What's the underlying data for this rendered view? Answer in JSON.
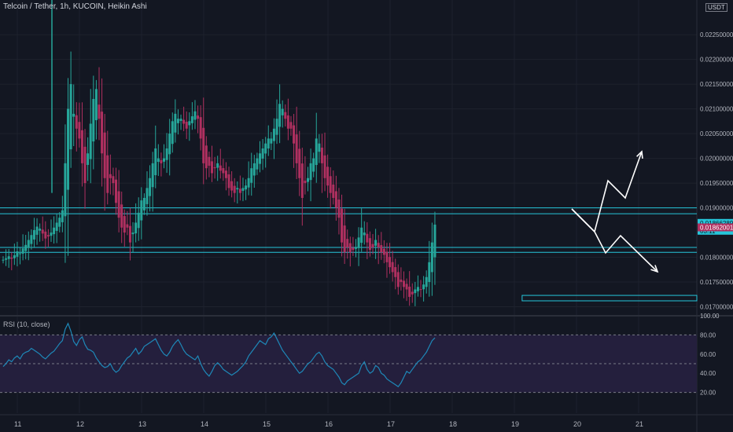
{
  "title": "Telcoin / Tether, 1h, KUCOIN, Heikin Ashi",
  "currency": "USDT",
  "rsi_label": "RSI (10, close)",
  "price_labels": [
    {
      "text": "0.02250000",
      "v": 0.0225
    },
    {
      "text": "0.02200000",
      "v": 0.022
    },
    {
      "text": "0.02150000",
      "v": 0.0215
    },
    {
      "text": "0.02100000",
      "v": 0.021
    },
    {
      "text": "0.02050000",
      "v": 0.0205
    },
    {
      "text": "0.02000000",
      "v": 0.02
    },
    {
      "text": "0.01950000",
      "v": 0.0195
    },
    {
      "text": "0.01900000",
      "v": 0.019
    },
    {
      "text": "0.01800000",
      "v": 0.018
    },
    {
      "text": "0.01750000",
      "v": 0.0175
    },
    {
      "text": "0.01700000",
      "v": 0.017
    }
  ],
  "price_badges": [
    {
      "text": "0.01866289",
      "sub": "03:11",
      "v": 0.018663,
      "color": "#26c6da"
    },
    {
      "text": "0.01862001",
      "v": 0.01862,
      "color": "#b03060"
    }
  ],
  "rsi_labels": [
    {
      "text": "100.00",
      "v": 100
    },
    {
      "text": "80.00",
      "v": 80
    },
    {
      "text": "60.00",
      "v": 60
    },
    {
      "text": "40.00",
      "v": 40
    },
    {
      "text": "20.00",
      "v": 20
    }
  ],
  "time_labels": [
    {
      "text": "11",
      "x": 0
    },
    {
      "text": "12",
      "x": 24
    },
    {
      "text": "13",
      "x": 48
    },
    {
      "text": "14",
      "x": 72
    },
    {
      "text": "15",
      "x": 96
    },
    {
      "text": "16",
      "x": 120
    },
    {
      "text": "17",
      "x": 144
    },
    {
      "text": "18",
      "x": 168
    },
    {
      "text": "19",
      "x": 192
    },
    {
      "text": "20",
      "x": 216
    },
    {
      "text": "21",
      "x": 240
    }
  ],
  "colors": {
    "background": "#131722",
    "grid": "#1e222d",
    "up": "#26a69a",
    "down": "#b03060",
    "zone": "#26c6da",
    "rsi_line": "#1e88b8",
    "rsi_band": "#241f3d",
    "arrow": "#ffffff"
  },
  "chart_data": {
    "type": "candlestick",
    "title": "Telcoin / Tether, 1h, KUCOIN, Heikin Ashi",
    "x_unit": "hours from day 11 00:00",
    "ylim": [
      0.01685,
      0.0232
    ],
    "candles_close": [
      0.01795,
      0.01798,
      0.01802,
      0.01797,
      0.01804,
      0.01812,
      0.01808,
      0.01818,
      0.01825,
      0.01835,
      0.01845,
      0.01855,
      0.01862,
      0.01858,
      0.01848,
      0.01838,
      0.01842,
      0.0185,
      0.0186,
      0.0187,
      0.0188,
      0.01895,
      0.0199,
      0.021,
      0.0215,
      0.0209,
      0.0206,
      0.0204,
      0.0199,
      0.0195,
      0.0201,
      0.0207,
      0.0212,
      0.0214,
      0.0208,
      0.0201,
      0.0196,
      0.0193,
      0.0196,
      0.0195,
      0.0191,
      0.0188,
      0.0186,
      0.0185,
      0.0186,
      0.0183,
      0.0185,
      0.0187,
      0.0189,
      0.01915,
      0.0192,
      0.0194,
      0.0196,
      0.0199,
      0.0202,
      0.02,
      0.0199,
      0.02,
      0.0202,
      0.0205,
      0.02075,
      0.0209,
      0.0208,
      0.0208,
      0.0207,
      0.0206,
      0.02075,
      0.02085,
      0.02095,
      0.0208,
      0.0204,
      0.0199,
      0.0198,
      0.01985,
      0.0197,
      0.0198,
      0.0199,
      0.01975,
      0.0197,
      0.0196,
      0.0194,
      0.01935,
      0.0193,
      0.0194,
      0.0193,
      0.0194,
      0.01945,
      0.0196,
      0.0198,
      0.0199,
      0.02,
      0.0201,
      0.0202,
      0.0203,
      0.0204,
      0.0204,
      0.0206,
      0.0208,
      0.0211,
      0.021,
      0.0208,
      0.0206,
      0.0206,
      0.0203,
      0.0199,
      0.0196,
      0.0192,
      0.0195,
      0.0196,
      0.0199,
      0.02,
      0.0204,
      0.0203,
      0.0199,
      0.0196,
      0.01945,
      0.0193,
      0.0192,
      0.019,
      0.0188,
      0.0183,
      0.0181,
      0.0182,
      0.0181,
      0.01815,
      0.0182,
      0.0184,
      0.0186,
      0.0185,
      0.0183,
      0.01815,
      0.0182,
      0.01835,
      0.0182,
      0.0181,
      0.01805,
      0.0179,
      0.0178,
      0.0177,
      0.0176,
      0.0174,
      0.0175,
      0.0174,
      0.01735,
      0.0172,
      0.01725,
      0.01735,
      0.0174,
      0.01735,
      0.01745,
      0.0176,
      0.0179,
      0.0183,
      0.01866
    ],
    "horizontal_lines": [
      0.019,
      0.01888,
      0.0182,
      0.0181
    ],
    "support_zone": {
      "top": 0.01723,
      "bottom": 0.01712,
      "x_start": 195,
      "x_end": 950
    },
    "rsi": {
      "ylim": [
        0,
        100
      ],
      "levels": [
        80,
        50,
        20
      ],
      "values": [
        47,
        50,
        54,
        52,
        56,
        58,
        55,
        60,
        62,
        63,
        66,
        64,
        62,
        60,
        57,
        55,
        58,
        61,
        63,
        67,
        71,
        74,
        86,
        92,
        84,
        73,
        69,
        75,
        78,
        70,
        65,
        64,
        62,
        56,
        52,
        48,
        46,
        47,
        50,
        44,
        41,
        43,
        48,
        52,
        56,
        58,
        62,
        66,
        60,
        63,
        68,
        70,
        72,
        74,
        76,
        70,
        64,
        60,
        58,
        62,
        68,
        72,
        75,
        70,
        64,
        60,
        58,
        56,
        54,
        58,
        50,
        44,
        40,
        37,
        42,
        48,
        51,
        48,
        44,
        42,
        40,
        38,
        40,
        42,
        45,
        48,
        52,
        58,
        62,
        66,
        70,
        74,
        72,
        70,
        76,
        78,
        82,
        76,
        70,
        64,
        60,
        56,
        52,
        48,
        44,
        40,
        42,
        46,
        50,
        52,
        56,
        60,
        62,
        58,
        52,
        48,
        46,
        44,
        40,
        36,
        30,
        28,
        32,
        34,
        36,
        38,
        40,
        48,
        52,
        44,
        40,
        42,
        48,
        46,
        40,
        38,
        34,
        32,
        30,
        28,
        26,
        30,
        36,
        42,
        40,
        44,
        48,
        52,
        54,
        58,
        62,
        68,
        74,
        77
      ]
    }
  },
  "annotations": {
    "bull_arrow": [
      [
        727,
        266
      ],
      [
        756,
        295
      ],
      [
        773,
        230
      ],
      [
        795,
        252
      ],
      [
        816,
        193
      ]
    ],
    "bear_arrow": [
      [
        727,
        266
      ],
      [
        756,
        295
      ],
      [
        770,
        322
      ],
      [
        789,
        300
      ],
      [
        836,
        346
      ]
    ]
  }
}
